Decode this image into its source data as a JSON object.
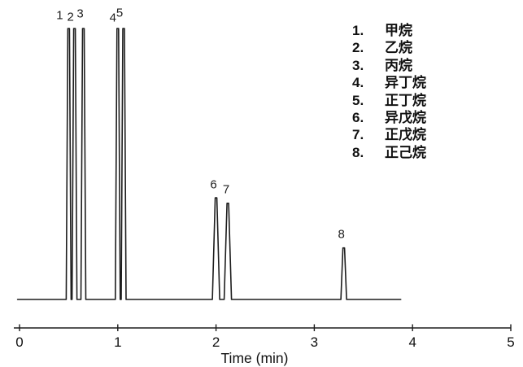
{
  "figure": {
    "background": "#ffffff",
    "ink_color": "#1d1d1d"
  },
  "legend": {
    "items": [
      {
        "num": "1.",
        "name": "甲烷"
      },
      {
        "num": "2.",
        "name": "乙烷"
      },
      {
        "num": "3.",
        "name": "丙烷"
      },
      {
        "num": "4.",
        "name": "异丁烷"
      },
      {
        "num": "5.",
        "name": "正丁烷"
      },
      {
        "num": "6.",
        "name": "异戊烷"
      },
      {
        "num": "7.",
        "name": "正戊烷"
      },
      {
        "num": "8.",
        "name": "正己烷"
      }
    ]
  },
  "chart_data": {
    "type": "line",
    "kind": "gas-chromatogram",
    "title": "",
    "xlabel": "Time (min)",
    "ylabel": "",
    "xlim": [
      0,
      5
    ],
    "x_ticks": [
      0,
      1,
      2,
      3,
      4,
      5
    ],
    "x_tick_labels": [
      "0",
      "1",
      "2",
      "3",
      "4",
      "5"
    ],
    "grid": false,
    "legend_position": "upper-right",
    "trace_t_range": [
      -0.02,
      3.88
    ],
    "peaks": [
      {
        "label": "1",
        "name": "甲烷",
        "rt_min": 0.5,
        "height_pct": 100,
        "label_dx": -11,
        "label_dy": -16
      },
      {
        "label": "2",
        "name": "乙烷",
        "rt_min": 0.56,
        "height_pct": 100,
        "label_dx": -5,
        "label_dy": -14
      },
      {
        "label": "3",
        "name": "丙烷",
        "rt_min": 0.65,
        "height_pct": 100,
        "label_dx": -4,
        "label_dy": -18
      },
      {
        "label": "4",
        "name": "异丁烷",
        "rt_min": 1.0,
        "height_pct": 100,
        "label_dx": -6,
        "label_dy": -13
      },
      {
        "label": "5",
        "name": "正丁烷",
        "rt_min": 1.06,
        "height_pct": 100,
        "label_dx": -5,
        "label_dy": -19
      },
      {
        "label": "6",
        "name": "异戊烷",
        "rt_min": 2.0,
        "height_pct": 37.5,
        "label_dx": -3,
        "label_dy": -16
      },
      {
        "label": "7",
        "name": "正戊烷",
        "rt_min": 2.12,
        "height_pct": 35.5,
        "label_dx": -2,
        "label_dy": -17
      },
      {
        "label": "8",
        "name": "正己烷",
        "rt_min": 3.3,
        "height_pct": 19,
        "label_dx": -3,
        "label_dy": -17
      }
    ]
  }
}
